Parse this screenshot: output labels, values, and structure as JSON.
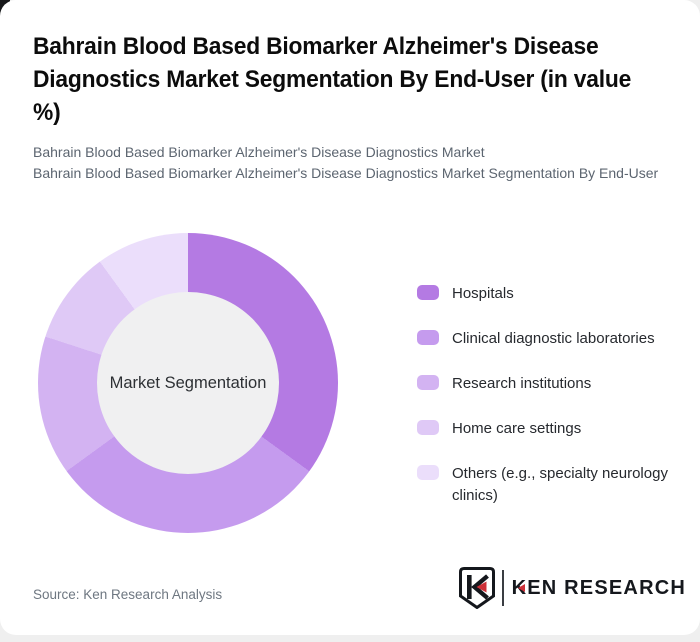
{
  "title": "Bahrain Blood Based Biomarker Alzheimer's Disease Diagnostics Market Segmentation By End-User (in value %)",
  "subtitle_line1": "Bahrain Blood Based Biomarker Alzheimer's Disease Diagnostics Market",
  "subtitle_line2": "Bahrain Blood Based Biomarker Alzheimer's Disease Diagnostics Market Segmentation By End-User",
  "chart_data": {
    "type": "pie",
    "variant": "donut",
    "title": "Bahrain Blood Based Biomarker Alzheimer's Disease Diagnostics Market Segmentation By End-User (in value %)",
    "center_label": "Market Segmentation",
    "unit": "value %",
    "start_angle_deg": 0,
    "direction": "clockwise",
    "legend_position": "right",
    "categories": [
      "Hospitals",
      "Clinical diagnostic laboratories",
      "Research institutions",
      "Home care settings",
      "Others (e.g., specialty neurology clinics)"
    ],
    "values": [
      35,
      30,
      15,
      10,
      10
    ],
    "colors": [
      "#b47ae3",
      "#c59bee",
      "#d3b3f2",
      "#dfc9f6",
      "#ebdefb"
    ]
  },
  "legend": {
    "items": [
      {
        "label": "Hospitals",
        "color": "#b47ae3"
      },
      {
        "label": "Clinical diagnostic laboratories",
        "color": "#c59bee"
      },
      {
        "label": "Research institutions",
        "color": "#d3b3f2"
      },
      {
        "label": "Home care settings",
        "color": "#dfc9f6"
      },
      {
        "label": "Others (e.g., specialty neurology clinics)",
        "color": "#ebdefb"
      }
    ]
  },
  "footer": {
    "source": "Source: Ken Research Analysis",
    "logo_text": "KEN RESEARCH"
  },
  "ui_colors": {
    "accent_red": "#cd3038",
    "center_circle": "#f0f0f1",
    "subtitle_text": "#5c6570"
  }
}
